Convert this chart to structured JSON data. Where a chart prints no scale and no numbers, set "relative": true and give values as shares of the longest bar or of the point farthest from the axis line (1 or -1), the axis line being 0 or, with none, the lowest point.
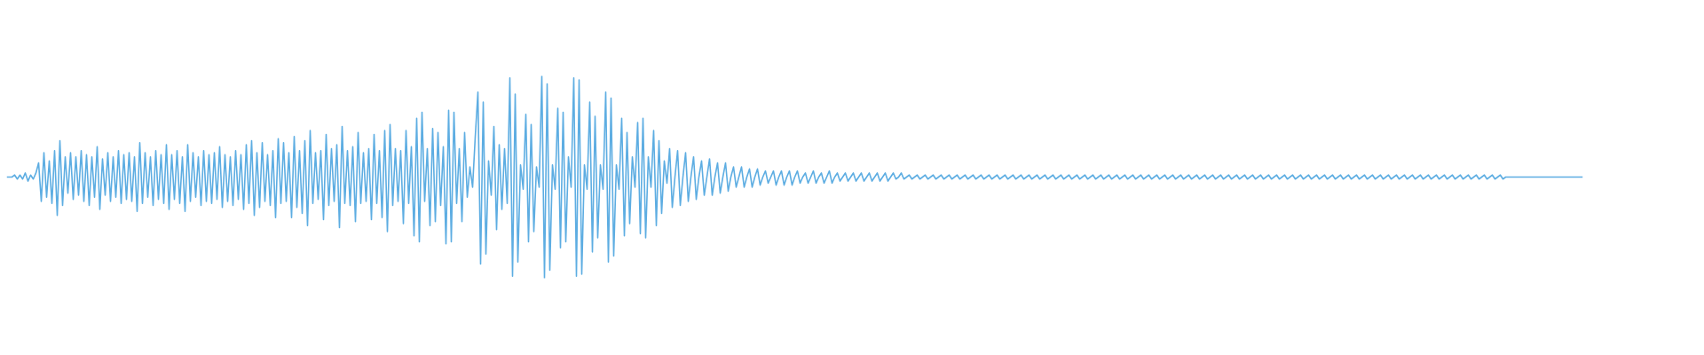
{
  "chart_data": {
    "type": "line",
    "relative": true,
    "tick_labels": false,
    "line_style": "solid",
    "categories": [
      null,
      null,
      null,
      null,
      null,
      null,
      null,
      null,
      null,
      null,
      null,
      null,
      null,
      null,
      null,
      null,
      null,
      null,
      null,
      null,
      null,
      null,
      null,
      null,
      null,
      null,
      null,
      null,
      null,
      null,
      null,
      null,
      null,
      null,
      null,
      null,
      null,
      null,
      null,
      null,
      null,
      null,
      null,
      null,
      null,
      null,
      null,
      null,
      null,
      null,
      null,
      null,
      null,
      null,
      null,
      null,
      null,
      null,
      null,
      null,
      null,
      null,
      null,
      null,
      null,
      null,
      null,
      null,
      null,
      null,
      null,
      null,
      null,
      null,
      null,
      null,
      null,
      null,
      null,
      null,
      null,
      null,
      null,
      null,
      null,
      null,
      null,
      null,
      null,
      null,
      null,
      null,
      null,
      null,
      null,
      null,
      null,
      null,
      null,
      null,
      null,
      null,
      null,
      null,
      null,
      null,
      null,
      null,
      null,
      null,
      null,
      null,
      null,
      null,
      null,
      null,
      null,
      null,
      null,
      null,
      null,
      null,
      null,
      null,
      null,
      null,
      null,
      null,
      null,
      null,
      null,
      null,
      null,
      null,
      null,
      null,
      null,
      null,
      null,
      null,
      null,
      null,
      null,
      null,
      null,
      null,
      null,
      null,
      null,
      null,
      null,
      null,
      null,
      null,
      null,
      null,
      null,
      null,
      null,
      null,
      null,
      null,
      null,
      null,
      null,
      null,
      null,
      null,
      null,
      null,
      null,
      null,
      null,
      null,
      null,
      null,
      null,
      null,
      null,
      null,
      null,
      null,
      null,
      null,
      null,
      null,
      null,
      null,
      null,
      null,
      null,
      null,
      null,
      null,
      null,
      null,
      null,
      null,
      null,
      null,
      null,
      null,
      null,
      null,
      null,
      null,
      null,
      null,
      null,
      null,
      null,
      null,
      null,
      null,
      null,
      null,
      null,
      null,
      null,
      null,
      null,
      null,
      null,
      null,
      null,
      null,
      null,
      null,
      null,
      null,
      null,
      null,
      null,
      null,
      null,
      null,
      null,
      null,
      null,
      null,
      null,
      null,
      null,
      null,
      null,
      null,
      null,
      null,
      null,
      null,
      null,
      null,
      null,
      null,
      null,
      null,
      null,
      null,
      null,
      null,
      null,
      null,
      null,
      null,
      null,
      null,
      null,
      null,
      null,
      null,
      null,
      null,
      null,
      null,
      null,
      null,
      null,
      null,
      null,
      null,
      null,
      null,
      null,
      null,
      null,
      null,
      null,
      null,
      null,
      null,
      null,
      null,
      null,
      null,
      null,
      null,
      null,
      null,
      null,
      null,
      null,
      null,
      null,
      null,
      null,
      null,
      null,
      null,
      null,
      null,
      null,
      null,
      null,
      null,
      null,
      null,
      null,
      null,
      null,
      null,
      null,
      null,
      null,
      null,
      null,
      null,
      null,
      null,
      null,
      null,
      null,
      null,
      null,
      null,
      null,
      null,
      null,
      null,
      null,
      null,
      null,
      null,
      null,
      null,
      null,
      null,
      null,
      null,
      null,
      null,
      null,
      null,
      null,
      null,
      null,
      null,
      null,
      null,
      null,
      null,
      null,
      null,
      null,
      null,
      null,
      null,
      null,
      null,
      null,
      null,
      null,
      null,
      null,
      null,
      null,
      null,
      null,
      null,
      null,
      null,
      null,
      null,
      null,
      null,
      null,
      null,
      null,
      null,
      null,
      null,
      null,
      null,
      null,
      null,
      null,
      null,
      null,
      null,
      null,
      null,
      null,
      null,
      null,
      null,
      null,
      null,
      null,
      null,
      null,
      null,
      null,
      null,
      null,
      null,
      null,
      null,
      null,
      null,
      null,
      null,
      null,
      null,
      null,
      null,
      null,
      null,
      null,
      null,
      null,
      null,
      null,
      null,
      null,
      null,
      null,
      null,
      null,
      null,
      null,
      null,
      null,
      null,
      null,
      null,
      null,
      null,
      null,
      null,
      null,
      null,
      null,
      null,
      null,
      null,
      null,
      null,
      null,
      null,
      null,
      null,
      null,
      null,
      null,
      null,
      null,
      null,
      null,
      null,
      null,
      null,
      null,
      null,
      null,
      null,
      null,
      null,
      null,
      null,
      null,
      null,
      null,
      null,
      null,
      null,
      null,
      null,
      null,
      null,
      null,
      null,
      null,
      null,
      null,
      null,
      null,
      null,
      null,
      null,
      null,
      null,
      null,
      null,
      null,
      null,
      null,
      null,
      null,
      null,
      null,
      null,
      null,
      null,
      null,
      null,
      null,
      null,
      null,
      null,
      null,
      null,
      null,
      null,
      null,
      null,
      null,
      null,
      null,
      null,
      null,
      null,
      null,
      null,
      null,
      null,
      null,
      null,
      null,
      null,
      null,
      null,
      null,
      null,
      null,
      null,
      null,
      null,
      null,
      null,
      null,
      null,
      null,
      null,
      null,
      null,
      null,
      null,
      null,
      null,
      null,
      null,
      null,
      null,
      null,
      null,
      null,
      null,
      null,
      null,
      null,
      null,
      null,
      null,
      null,
      null,
      null,
      null,
      null,
      null,
      null,
      null,
      null,
      null,
      null,
      null,
      null,
      null,
      null,
      null,
      null,
      null,
      null,
      null,
      null
    ],
    "series": [
      {
        "color": "#5dade2",
        "values": [
          0.5,
          0.5,
          0.5,
          0.51,
          0.49,
          0.51,
          0.49,
          0.52,
          0.48,
          0.51,
          0.49,
          0.52,
          0.57,
          0.38,
          0.62,
          0.4,
          0.58,
          0.37,
          0.63,
          0.31,
          0.68,
          0.36,
          0.6,
          0.42,
          0.62,
          0.39,
          0.6,
          0.41,
          0.63,
          0.38,
          0.61,
          0.36,
          0.6,
          0.4,
          0.65,
          0.34,
          0.59,
          0.41,
          0.62,
          0.38,
          0.6,
          0.4,
          0.63,
          0.37,
          0.61,
          0.39,
          0.62,
          0.38,
          0.6,
          0.33,
          0.67,
          0.37,
          0.62,
          0.4,
          0.6,
          0.36,
          0.63,
          0.39,
          0.61,
          0.37,
          0.66,
          0.34,
          0.61,
          0.39,
          0.63,
          0.37,
          0.6,
          0.33,
          0.66,
          0.38,
          0.62,
          0.4,
          0.6,
          0.36,
          0.63,
          0.38,
          0.61,
          0.37,
          0.62,
          0.39,
          0.65,
          0.35,
          0.61,
          0.38,
          0.6,
          0.36,
          0.63,
          0.39,
          0.61,
          0.34,
          0.66,
          0.37,
          0.68,
          0.31,
          0.62,
          0.35,
          0.67,
          0.38,
          0.61,
          0.36,
          0.63,
          0.3,
          0.69,
          0.37,
          0.67,
          0.38,
          0.62,
          0.3,
          0.7,
          0.35,
          0.63,
          0.32,
          0.68,
          0.26,
          0.73,
          0.37,
          0.62,
          0.39,
          0.63,
          0.29,
          0.71,
          0.36,
          0.64,
          0.38,
          0.66,
          0.25,
          0.75,
          0.37,
          0.63,
          0.36,
          0.65,
          0.28,
          0.72,
          0.37,
          0.62,
          0.38,
          0.64,
          0.29,
          0.71,
          0.37,
          0.63,
          0.3,
          0.73,
          0.23,
          0.76,
          0.36,
          0.64,
          0.38,
          0.63,
          0.27,
          0.73,
          0.37,
          0.65,
          0.21,
          0.79,
          0.18,
          0.82,
          0.38,
          0.64,
          0.26,
          0.74,
          0.28,
          0.72,
          0.36,
          0.65,
          0.17,
          0.83,
          0.18,
          0.82,
          0.37,
          0.64,
          0.28,
          0.72,
          0.4,
          0.55,
          0.45,
          0.7,
          0.92,
          0.07,
          0.87,
          0.12,
          0.58,
          0.41,
          0.75,
          0.24,
          0.66,
          0.34,
          0.64,
          0.37,
          0.99,
          0.01,
          0.91,
          0.08,
          0.56,
          0.44,
          0.81,
          0.18,
          0.76,
          0.23,
          0.55,
          0.45,
          1.0,
          0.0,
          0.96,
          0.04,
          0.56,
          0.44,
          0.84,
          0.15,
          0.82,
          0.18,
          0.6,
          0.45,
          0.99,
          0.01,
          0.98,
          0.02,
          0.56,
          0.44,
          0.87,
          0.13,
          0.8,
          0.2,
          0.56,
          0.44,
          0.92,
          0.08,
          0.89,
          0.11,
          0.56,
          0.44,
          0.79,
          0.21,
          0.72,
          0.27,
          0.6,
          0.45,
          0.77,
          0.22,
          0.79,
          0.2,
          0.6,
          0.45,
          0.73,
          0.26,
          0.68,
          0.32,
          0.58,
          0.47,
          0.64,
          0.35,
          0.5,
          0.63,
          0.36,
          0.5,
          0.62,
          0.38,
          0.5,
          0.6,
          0.39,
          0.5,
          0.58,
          0.41,
          0.5,
          0.59,
          0.41,
          0.5,
          0.57,
          0.42,
          0.5,
          0.57,
          0.43,
          0.5,
          0.55,
          0.45,
          0.5,
          0.55,
          0.45,
          0.5,
          0.54,
          0.45,
          0.5,
          0.54,
          0.46,
          0.5,
          0.53,
          0.47,
          0.5,
          0.53,
          0.46,
          0.5,
          0.53,
          0.46,
          0.5,
          0.53,
          0.46,
          0.5,
          0.53,
          0.47,
          0.5,
          0.52,
          0.47,
          0.5,
          0.53,
          0.47,
          0.5,
          0.52,
          0.47,
          0.5,
          0.53,
          0.47,
          0.5,
          0.52,
          0.48,
          0.5,
          0.52,
          0.48,
          0.5,
          0.52,
          0.48,
          0.5,
          0.52,
          0.48,
          0.5,
          0.52,
          0.48,
          0.5,
          0.52,
          0.48,
          0.5,
          0.52,
          0.48,
          0.5,
          0.52,
          0.49,
          0.5,
          0.52,
          0.49,
          0.5,
          0.51,
          0.49,
          0.5,
          0.51,
          0.49,
          0.5,
          0.51,
          0.49,
          0.5,
          0.51,
          0.49,
          0.5,
          0.51,
          0.49,
          0.5,
          0.51,
          0.49,
          0.5,
          0.51,
          0.49,
          0.5,
          0.51,
          0.49,
          0.5,
          0.51,
          0.49,
          0.5,
          0.51,
          0.49,
          0.5,
          0.51,
          0.49,
          0.5,
          0.51,
          0.49,
          0.5,
          0.51,
          0.49,
          0.5,
          0.51,
          0.49,
          0.5,
          0.51,
          0.49,
          0.5,
          0.51,
          0.49,
          0.5,
          0.51,
          0.49,
          0.5,
          0.51,
          0.49,
          0.5,
          0.51,
          0.49,
          0.5,
          0.51,
          0.49,
          0.5,
          0.51,
          0.49,
          0.5,
          0.51,
          0.49,
          0.5,
          0.51,
          0.49,
          0.5,
          0.51,
          0.49,
          0.5,
          0.51,
          0.49,
          0.5,
          0.51,
          0.49,
          0.5,
          0.51,
          0.49,
          0.5,
          0.51,
          0.49,
          0.5,
          0.51,
          0.49,
          0.5,
          0.51,
          0.49,
          0.5,
          0.51,
          0.49,
          0.5,
          0.51,
          0.49,
          0.5,
          0.51,
          0.49,
          0.5,
          0.51,
          0.49,
          0.5,
          0.51,
          0.49,
          0.5,
          0.51,
          0.49,
          0.5,
          0.51,
          0.49,
          0.5,
          0.51,
          0.49,
          0.5,
          0.51,
          0.49,
          0.5,
          0.51,
          0.49,
          0.5,
          0.51,
          0.49,
          0.5,
          0.51,
          0.49,
          0.5,
          0.51,
          0.49,
          0.5,
          0.51,
          0.49,
          0.5,
          0.51,
          0.49,
          0.5,
          0.51,
          0.49,
          0.5,
          0.51,
          0.49,
          0.5,
          0.51,
          0.49,
          0.5,
          0.51,
          0.49,
          0.5,
          0.51,
          0.49,
          0.5,
          0.51,
          0.49,
          0.5,
          0.51,
          0.49,
          0.5,
          0.51,
          0.49,
          0.5,
          0.51,
          0.49,
          0.5,
          0.51,
          0.49,
          0.5,
          0.51,
          0.49,
          0.5,
          0.51,
          0.49,
          0.5,
          0.51,
          0.49,
          0.5,
          0.51,
          0.49,
          0.5,
          0.51,
          0.49,
          0.5,
          0.51,
          0.49,
          0.5,
          0.51,
          0.49,
          0.5,
          0.51,
          0.49,
          0.5,
          0.51,
          0.49,
          0.5,
          0.51,
          0.49,
          0.5,
          0.51,
          0.49,
          0.5,
          0.51,
          0.49,
          0.5,
          0.51,
          0.49,
          0.5,
          0.51,
          0.49,
          0.5,
          0.51,
          0.49,
          0.5,
          0.51,
          0.49,
          0.5,
          0.51,
          0.49,
          0.5,
          0.51,
          0.49,
          0.5,
          0.51,
          0.49,
          0.5,
          0.51,
          0.49,
          0.5,
          0.5,
          0.5,
          0.5,
          0.5,
          0.5,
          0.5,
          0.5,
          0.5,
          0.5,
          0.5,
          0.5,
          0.5,
          0.5,
          0.5,
          0.5,
          0.5,
          0.5,
          0.5,
          0.5,
          0.5,
          0.5,
          0.5,
          0.5,
          0.5,
          0.5,
          0.5,
          0.5,
          0.5,
          0.5
        ]
      }
    ]
  }
}
